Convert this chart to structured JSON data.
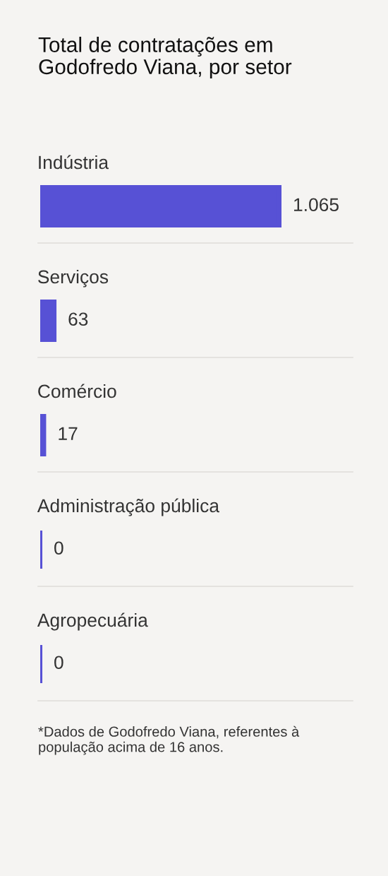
{
  "chart_data": {
    "type": "bar",
    "orientation": "horizontal",
    "title": "Total de contratações em Godofredo Viana, por setor",
    "categories": [
      "Indústria",
      "Serviços",
      "Comércio",
      "Administração pública",
      "Agropecuária"
    ],
    "values": [
      1065,
      63,
      17,
      0,
      0
    ],
    "value_labels": [
      "1.065",
      "63",
      "17",
      "0",
      "0"
    ],
    "color": "#5751d5",
    "tick_labels": "y",
    "annotations": [
      "*Dados de Godofredo Viana, referentes à população acima de 16 anos."
    ]
  }
}
